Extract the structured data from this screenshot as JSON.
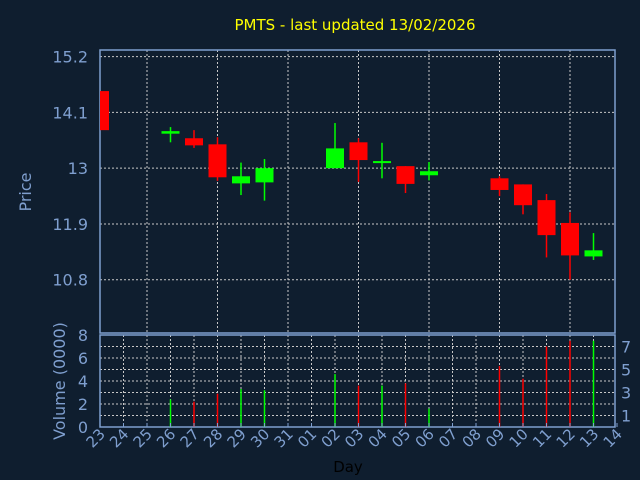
{
  "chart_data": [
    {
      "type": "candlestick",
      "title": "PMTS - last updated 13/02/2026",
      "ylabel": "Price",
      "ylim": [
        9.75,
        15.33
      ],
      "yticks": [
        "15.2",
        "14.1",
        "13",
        "11.9",
        "10.8"
      ],
      "grid": true,
      "colors": {
        "up": "#00ff00",
        "down": "#ff0000",
        "background": "#0f1e2f",
        "axis": "#7f9fcf",
        "grid": "#c8c8c8",
        "title": "#ffff00"
      },
      "x_days": [
        "23",
        "24",
        "25",
        "26",
        "27",
        "28",
        "29",
        "30",
        "31",
        "01",
        "02",
        "03",
        "04",
        "05",
        "06",
        "07",
        "08",
        "09",
        "10",
        "11",
        "12",
        "13",
        "14"
      ],
      "candles": [
        {
          "day": "23",
          "open": 14.52,
          "high": 14.52,
          "low": 13.75,
          "close": 13.75
        },
        {
          "day": "26",
          "open": 13.68,
          "high": 13.81,
          "low": 13.51,
          "close": 13.73
        },
        {
          "day": "27",
          "open": 13.59,
          "high": 13.75,
          "low": 13.4,
          "close": 13.45
        },
        {
          "day": "28",
          "open": 13.47,
          "high": 13.61,
          "low": 12.75,
          "close": 12.82
        },
        {
          "day": "29",
          "open": 12.7,
          "high": 13.11,
          "low": 12.47,
          "close": 12.84
        },
        {
          "day": "30",
          "open": 12.72,
          "high": 13.18,
          "low": 12.36,
          "close": 13.0
        },
        {
          "day": "02",
          "open": 13.0,
          "high": 13.89,
          "low": 13.0,
          "close": 13.39
        },
        {
          "day": "03",
          "open": 13.51,
          "high": 13.59,
          "low": 12.73,
          "close": 13.16
        },
        {
          "day": "04",
          "open": 13.1,
          "high": 13.5,
          "low": 12.8,
          "close": 13.14
        },
        {
          "day": "05",
          "open": 13.04,
          "high": 13.04,
          "low": 12.51,
          "close": 12.69
        },
        {
          "day": "06",
          "open": 12.86,
          "high": 13.12,
          "low": 12.76,
          "close": 12.94
        },
        {
          "day": "09",
          "open": 12.8,
          "high": 12.84,
          "low": 12.45,
          "close": 12.57
        },
        {
          "day": "10",
          "open": 12.68,
          "high": 12.68,
          "low": 12.09,
          "close": 12.27
        },
        {
          "day": "11",
          "open": 12.37,
          "high": 12.49,
          "low": 11.24,
          "close": 11.68
        },
        {
          "day": "12",
          "open": 11.92,
          "high": 12.13,
          "low": 10.8,
          "close": 11.28
        },
        {
          "day": "13",
          "open": 11.26,
          "high": 11.72,
          "low": 11.19,
          "close": 11.38
        }
      ]
    },
    {
      "type": "bar",
      "ylabel": "Volume (0000)",
      "xlabel": "Day",
      "ylim": [
        0,
        8
      ],
      "yticks": [
        "0",
        "1",
        "2",
        "3",
        "4",
        "5",
        "6",
        "7",
        "8"
      ],
      "grid": true,
      "bars": [
        {
          "day": "26",
          "value": 2.4,
          "dir": "up"
        },
        {
          "day": "27",
          "value": 2.2,
          "dir": "down"
        },
        {
          "day": "28",
          "value": 2.9,
          "dir": "down"
        },
        {
          "day": "29",
          "value": 3.3,
          "dir": "up"
        },
        {
          "day": "30",
          "value": 3.2,
          "dir": "up"
        },
        {
          "day": "02",
          "value": 4.6,
          "dir": "up"
        },
        {
          "day": "03",
          "value": 3.6,
          "dir": "down"
        },
        {
          "day": "04",
          "value": 3.6,
          "dir": "up"
        },
        {
          "day": "05",
          "value": 3.8,
          "dir": "down"
        },
        {
          "day": "06",
          "value": 1.6,
          "dir": "up"
        },
        {
          "day": "09",
          "value": 5.3,
          "dir": "down"
        },
        {
          "day": "10",
          "value": 4.2,
          "dir": "down"
        },
        {
          "day": "11",
          "value": 7.0,
          "dir": "down"
        },
        {
          "day": "12",
          "value": 7.5,
          "dir": "down"
        },
        {
          "day": "13",
          "value": 7.5,
          "dir": "up"
        }
      ]
    }
  ]
}
